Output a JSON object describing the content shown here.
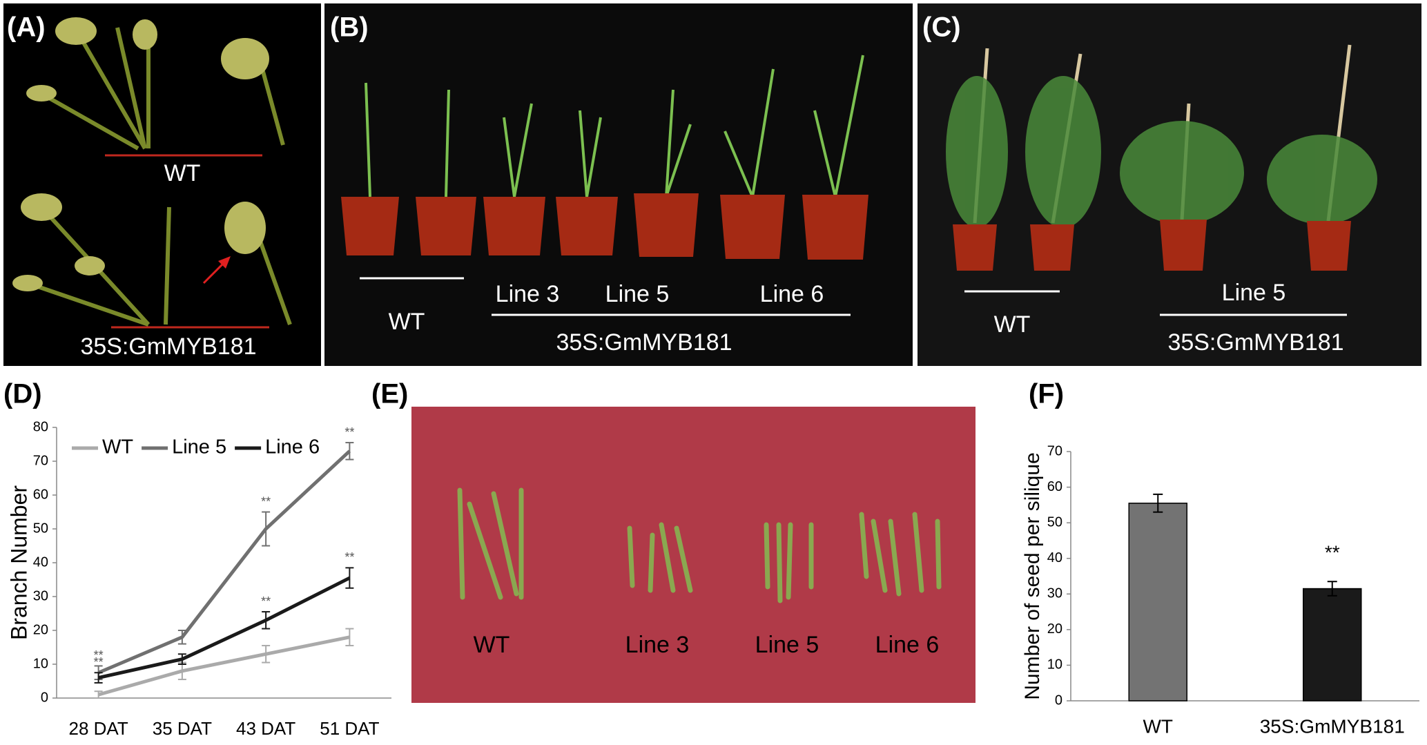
{
  "panels": [
    {
      "label": "(A)",
      "captions": [
        "WT",
        "35S:GmMYB181"
      ]
    },
    {
      "label": "(B)",
      "captions": [
        "WT",
        "Line 3",
        "Line 5",
        "Line 6",
        "35S:GmMYB181"
      ]
    },
    {
      "label": "(C)",
      "captions": [
        "WT",
        "Line 5",
        "35S:GmMYB181"
      ]
    },
    {
      "label": "(E)",
      "captions": [
        "WT",
        "Line 3",
        "Line 5",
        "Line 6"
      ]
    }
  ],
  "chart_data": [
    {
      "type": "line",
      "panel_label": "(D)",
      "ylabel": "Branch Number",
      "categories": [
        "28 DAT",
        "35 DAT",
        "43 DAT",
        "51 DAT"
      ],
      "series": [
        {
          "name": "WT",
          "color": "#aaaaaa",
          "values": [
            1,
            8,
            13,
            18
          ],
          "errors": [
            1,
            2.5,
            2.5,
            2.5
          ]
        },
        {
          "name": "Line 5",
          "color": "#707070",
          "values": [
            7.5,
            18,
            50,
            73
          ],
          "errors": [
            2,
            2,
            5,
            2.5
          ],
          "significance": [
            "**",
            null,
            "**",
            "**"
          ]
        },
        {
          "name": "Line 6",
          "color": "#1a1a1a",
          "values": [
            6,
            11.5,
            23,
            35.5
          ],
          "errors": [
            1.5,
            1.5,
            2.5,
            3
          ],
          "significance": [
            "**",
            null,
            "**",
            "**"
          ]
        }
      ],
      "ylim": [
        0,
        80
      ],
      "yticks": [
        0,
        10,
        20,
        30,
        40,
        50,
        60,
        70,
        80
      ],
      "grid": false,
      "legend": "top-left"
    },
    {
      "type": "bar",
      "panel_label": "(F)",
      "ylabel": "Number of seed per silique",
      "categories": [
        "WT",
        "35S:GmMYB181"
      ],
      "values": [
        55.5,
        31.5
      ],
      "errors": [
        2.5,
        2
      ],
      "colors": [
        "#737373",
        "#1a1a1a"
      ],
      "significance": [
        null,
        "**"
      ],
      "ylim": [
        0,
        70
      ],
      "yticks": [
        0,
        10,
        20,
        30,
        40,
        50,
        60,
        70
      ],
      "grid": false
    }
  ]
}
